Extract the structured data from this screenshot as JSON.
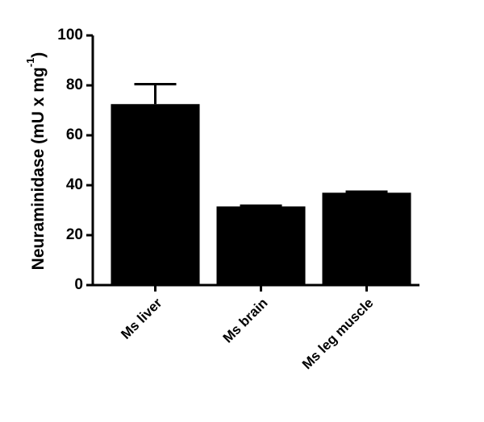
{
  "chart_data": {
    "type": "bar",
    "y_label": {
      "text": "Neuraminidase (mU x mg",
      "superscript": "-1",
      "suffix": ")"
    },
    "categories": [
      "Ms liver",
      "Ms brain",
      "Ms leg muscle"
    ],
    "values": [
      72.5,
      31.5,
      37
    ],
    "errors": [
      8,
      0.3,
      0.4
    ],
    "color": "#000000",
    "ylim": [
      0,
      100
    ],
    "yticks": [
      0,
      20,
      40,
      60,
      80,
      100
    ],
    "grid": false
  }
}
